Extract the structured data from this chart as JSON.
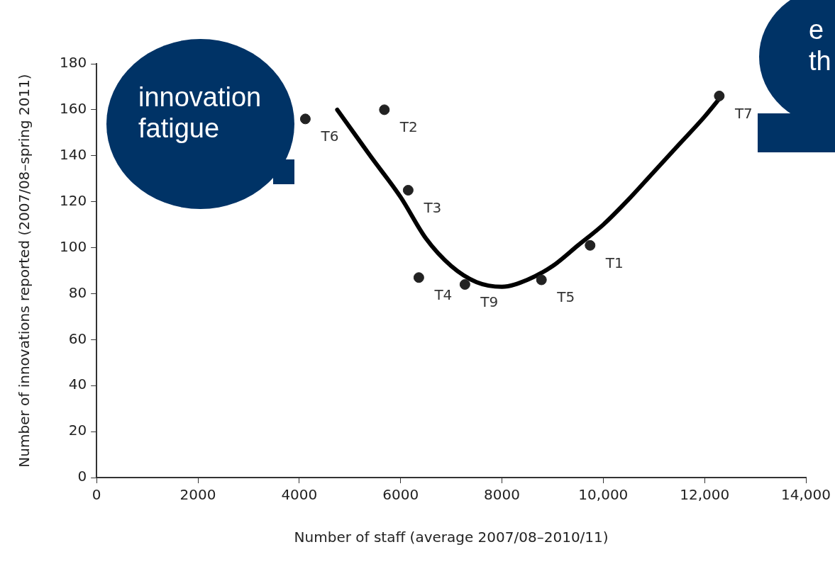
{
  "chart_data": {
    "type": "scatter",
    "xlabel": "Number of staff (average 2007/08–2010/11)",
    "ylabel": "Number of innovations reported (2007/08–spring 2011)",
    "xlim": [
      0,
      14000
    ],
    "xticks": [
      0,
      {
        "value": 2000,
        "label": "2000"
      },
      {
        "value": 4000,
        "label": "4000"
      },
      {
        "value": 6000,
        "label": "6000"
      },
      {
        "value": 8000,
        "label": "8000"
      },
      {
        "value": 10000,
        "label": "10,000"
      },
      {
        "value": 12000,
        "label": "12,000"
      },
      {
        "value": 14000,
        "label": "14,000"
      }
    ],
    "ylim": [
      0,
      180
    ],
    "yticks": [
      0,
      20,
      40,
      60,
      80,
      100,
      120,
      140,
      160,
      180
    ],
    "grid": false,
    "legend": false,
    "marker": "circle",
    "series": [
      {
        "type": "scatter",
        "color": "#222222",
        "x": [
          4120,
          5680,
          6150,
          6360,
          7270,
          8780,
          9740,
          12290
        ],
        "values": [
          156,
          160,
          125,
          87,
          84,
          86,
          101,
          166
        ]
      },
      {
        "type": "line",
        "color": "#000000",
        "marker": "none",
        "x": [
          4750,
          5400,
          6000,
          6500,
          7000,
          7500,
          8000,
          8500,
          9000,
          9500,
          10000,
          10500,
          11000,
          11500,
          12000,
          12300
        ],
        "values": [
          160,
          140,
          122,
          104,
          92,
          85,
          83,
          86,
          92,
          101,
          110,
          121,
          133,
          145,
          157,
          165
        ]
      }
    ],
    "annotations": [
      "innovation fatigue",
      "e th",
      {
        "text": "T6",
        "x": 4120,
        "y": 156
      },
      {
        "text": "T2",
        "x": 5680,
        "y": 160
      },
      {
        "text": "T3",
        "x": 6150,
        "y": 125
      },
      {
        "text": "T4",
        "x": 6360,
        "y": 87
      },
      {
        "text": "T9",
        "x": 7270,
        "y": 84
      },
      {
        "text": "T5",
        "x": 8780,
        "y": 86
      },
      {
        "text": "T1",
        "x": 9740,
        "y": 101
      },
      {
        "text": "T7",
        "x": 12290,
        "y": 166
      }
    ]
  }
}
